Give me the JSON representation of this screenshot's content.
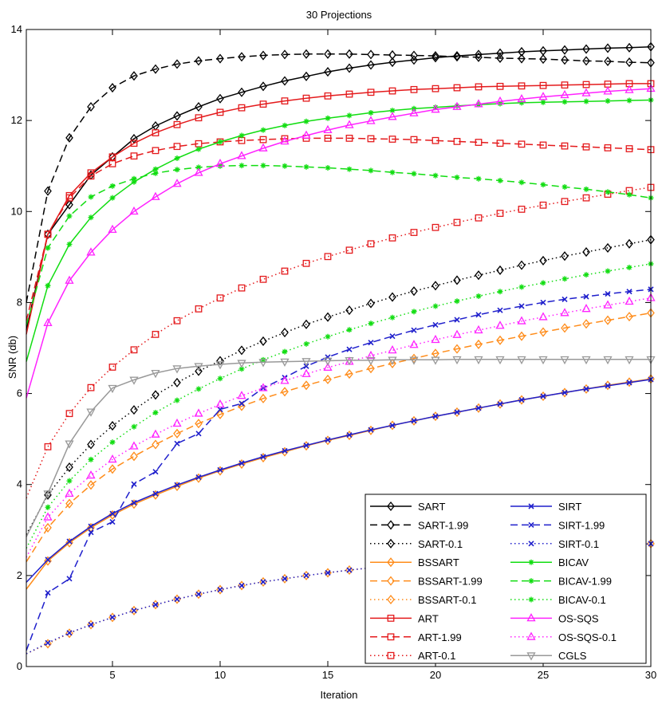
{
  "chart_data": {
    "type": "line",
    "title": "30 Projections",
    "xlabel": "Iteration",
    "ylabel": "SNR (db)",
    "xlim": [
      1,
      30
    ],
    "ylim": [
      0,
      14
    ],
    "xticks": [
      5,
      10,
      15,
      20,
      25,
      30
    ],
    "yticks": [
      0,
      2,
      4,
      6,
      8,
      10,
      12,
      14
    ],
    "x": [
      1,
      2,
      3,
      4,
      5,
      6,
      7,
      8,
      9,
      10,
      11,
      12,
      13,
      14,
      15,
      16,
      17,
      18,
      19,
      20,
      21,
      22,
      23,
      24,
      25,
      26,
      27,
      28,
      29,
      30
    ],
    "legend_position": "bottom-right",
    "series": [
      {
        "name": "SART",
        "color": "#000000",
        "dash": "solid",
        "marker": "diamond",
        "values": [
          7.4,
          9.5,
          10.15,
          10.8,
          11.2,
          11.6,
          11.88,
          12.1,
          12.3,
          12.48,
          12.62,
          12.75,
          12.87,
          12.97,
          13.07,
          13.15,
          13.22,
          13.28,
          13.33,
          13.38,
          13.42,
          13.45,
          13.48,
          13.51,
          13.53,
          13.55,
          13.57,
          13.59,
          13.6,
          13.62
        ]
      },
      {
        "name": "SART-1.99",
        "color": "#000000",
        "dash": "dashed",
        "marker": "diamond",
        "values": [
          8.0,
          10.45,
          11.62,
          12.3,
          12.72,
          12.98,
          13.13,
          13.24,
          13.31,
          13.36,
          13.4,
          13.43,
          13.45,
          13.46,
          13.46,
          13.46,
          13.45,
          13.44,
          13.43,
          13.42,
          13.4,
          13.39,
          13.37,
          13.36,
          13.35,
          13.33,
          13.31,
          13.3,
          13.28,
          13.27
        ]
      },
      {
        "name": "SART-0.1",
        "color": "#000000",
        "dash": "dotted",
        "marker": "diamond",
        "values": [
          2.9,
          3.77,
          4.38,
          4.88,
          5.29,
          5.64,
          5.97,
          6.24,
          6.49,
          6.72,
          6.95,
          7.15,
          7.34,
          7.52,
          7.68,
          7.83,
          7.98,
          8.12,
          8.25,
          8.37,
          8.49,
          8.6,
          8.71,
          8.82,
          8.92,
          9.02,
          9.11,
          9.2,
          9.29,
          9.38
        ]
      },
      {
        "name": "BSSART",
        "color": "#ff8c1a",
        "dash": "solid",
        "marker": "diamond",
        "values": [
          1.7,
          2.32,
          2.72,
          3.05,
          3.33,
          3.57,
          3.77,
          3.96,
          4.14,
          4.3,
          4.45,
          4.59,
          4.72,
          4.85,
          4.97,
          5.08,
          5.19,
          5.3,
          5.4,
          5.5,
          5.59,
          5.68,
          5.77,
          5.86,
          5.94,
          6.02,
          6.1,
          6.18,
          6.25,
          6.32
        ]
      },
      {
        "name": "BSSART-1.99",
        "color": "#ff8c1a",
        "dash": "dashed",
        "marker": "diamond",
        "values": [
          2.3,
          3.05,
          3.58,
          3.99,
          4.34,
          4.62,
          4.88,
          5.12,
          5.34,
          5.54,
          5.72,
          5.89,
          6.04,
          6.18,
          6.31,
          6.43,
          6.55,
          6.66,
          6.77,
          6.88,
          6.98,
          7.08,
          7.17,
          7.26,
          7.35,
          7.44,
          7.53,
          7.61,
          7.69,
          7.77
        ]
      },
      {
        "name": "BSSART-0.1",
        "color": "#ff8c1a",
        "dash": "dotted",
        "marker": "diamond",
        "values": [
          0.28,
          0.5,
          0.73,
          0.92,
          1.08,
          1.23,
          1.36,
          1.48,
          1.59,
          1.69,
          1.78,
          1.86,
          1.93,
          2.0,
          2.06,
          2.12,
          2.17,
          2.22,
          2.27,
          2.32,
          2.36,
          2.4,
          2.44,
          2.48,
          2.52,
          2.56,
          2.6,
          2.63,
          2.66,
          2.7
        ]
      },
      {
        "name": "ART",
        "color": "#e41a1c",
        "dash": "solid",
        "marker": "square",
        "values": [
          7.3,
          9.5,
          10.35,
          10.85,
          11.2,
          11.5,
          11.73,
          11.91,
          12.06,
          12.18,
          12.28,
          12.36,
          12.43,
          12.49,
          12.54,
          12.58,
          12.62,
          12.65,
          12.68,
          12.7,
          12.72,
          12.74,
          12.75,
          12.76,
          12.77,
          12.78,
          12.79,
          12.8,
          12.81,
          12.81
        ]
      },
      {
        "name": "ART-1.99",
        "color": "#e41a1c",
        "dash": "dashed",
        "marker": "square",
        "values": [
          7.6,
          9.5,
          10.3,
          10.78,
          11.05,
          11.22,
          11.34,
          11.43,
          11.49,
          11.53,
          11.56,
          11.58,
          11.6,
          11.61,
          11.61,
          11.61,
          11.6,
          11.59,
          11.58,
          11.56,
          11.54,
          11.52,
          11.5,
          11.48,
          11.46,
          11.44,
          11.42,
          11.4,
          11.38,
          11.36
        ]
      },
      {
        "name": "ART-0.1",
        "color": "#e41a1c",
        "dash": "dotted",
        "marker": "square",
        "values": [
          3.7,
          4.83,
          5.56,
          6.13,
          6.58,
          6.96,
          7.3,
          7.6,
          7.86,
          8.1,
          8.32,
          8.51,
          8.69,
          8.86,
          9.01,
          9.15,
          9.29,
          9.42,
          9.54,
          9.65,
          9.76,
          9.86,
          9.96,
          10.05,
          10.14,
          10.22,
          10.3,
          10.38,
          10.46,
          10.53
        ]
      },
      {
        "name": "SIRT",
        "color": "#1f1fcc",
        "dash": "solid",
        "marker": "x",
        "values": [
          1.85,
          2.35,
          2.75,
          3.08,
          3.36,
          3.6,
          3.8,
          3.99,
          4.16,
          4.32,
          4.47,
          4.61,
          4.74,
          4.86,
          4.98,
          5.09,
          5.2,
          5.3,
          5.4,
          5.5,
          5.59,
          5.68,
          5.77,
          5.86,
          5.94,
          6.02,
          6.1,
          6.17,
          6.24,
          6.31
        ]
      },
      {
        "name": "SIRT-1.99",
        "color": "#1f1fcc",
        "dash": "dashed",
        "marker": "x",
        "values": [
          0.35,
          1.62,
          1.93,
          2.95,
          3.18,
          4.01,
          4.28,
          4.9,
          5.12,
          5.65,
          5.78,
          6.12,
          6.35,
          6.6,
          6.8,
          6.97,
          7.12,
          7.26,
          7.39,
          7.51,
          7.62,
          7.73,
          7.83,
          7.92,
          8.0,
          8.07,
          8.13,
          8.19,
          8.24,
          8.29
        ]
      },
      {
        "name": "SIRT-0.1",
        "color": "#1f1fcc",
        "dash": "dotted",
        "marker": "x",
        "values": [
          0.28,
          0.52,
          0.74,
          0.92,
          1.08,
          1.23,
          1.36,
          1.48,
          1.59,
          1.69,
          1.78,
          1.86,
          1.93,
          2.0,
          2.06,
          2.12,
          2.17,
          2.22,
          2.27,
          2.32,
          2.36,
          2.4,
          2.44,
          2.48,
          2.52,
          2.56,
          2.6,
          2.63,
          2.66,
          2.7
        ]
      },
      {
        "name": "BICAV",
        "color": "#11dd11",
        "dash": "solid",
        "marker": "asterisk",
        "values": [
          6.7,
          8.37,
          9.28,
          9.87,
          10.3,
          10.65,
          10.93,
          11.17,
          11.37,
          11.53,
          11.67,
          11.79,
          11.89,
          11.98,
          12.05,
          12.11,
          12.17,
          12.22,
          12.26,
          12.29,
          12.32,
          12.35,
          12.37,
          12.39,
          12.4,
          12.41,
          12.42,
          12.43,
          12.44,
          12.45
        ]
      },
      {
        "name": "BICAV-1.99",
        "color": "#11dd11",
        "dash": "dashed",
        "marker": "asterisk",
        "values": [
          7.5,
          9.2,
          9.9,
          10.32,
          10.56,
          10.72,
          10.84,
          10.92,
          10.97,
          11.0,
          11.01,
          11.01,
          11.0,
          10.98,
          10.96,
          10.93,
          10.9,
          10.86,
          10.83,
          10.79,
          10.75,
          10.72,
          10.68,
          10.64,
          10.59,
          10.54,
          10.49,
          10.43,
          10.37,
          10.3
        ]
      },
      {
        "name": "BICAV-0.1",
        "color": "#11dd11",
        "dash": "dotted",
        "marker": "asterisk",
        "values": [
          2.6,
          3.5,
          4.08,
          4.55,
          4.93,
          5.27,
          5.58,
          5.85,
          6.1,
          6.33,
          6.54,
          6.74,
          6.92,
          7.09,
          7.25,
          7.4,
          7.54,
          7.67,
          7.8,
          7.92,
          8.03,
          8.14,
          8.24,
          8.34,
          8.43,
          8.52,
          8.61,
          8.69,
          8.77,
          8.85
        ]
      },
      {
        "name": "OS-SQS",
        "color": "#ff22ff",
        "dash": "solid",
        "marker": "triangle-up",
        "values": [
          5.9,
          7.55,
          8.48,
          9.1,
          9.6,
          10.0,
          10.32,
          10.61,
          10.85,
          11.05,
          11.22,
          11.39,
          11.54,
          11.67,
          11.79,
          11.9,
          11.99,
          12.08,
          12.16,
          12.24,
          12.3,
          12.36,
          12.42,
          12.47,
          12.52,
          12.56,
          12.6,
          12.64,
          12.67,
          12.7
        ]
      },
      {
        "name": "OS-SQS-0.1",
        "color": "#ff22ff",
        "dash": "dotted",
        "marker": "triangle-up",
        "values": [
          2.4,
          3.28,
          3.8,
          4.2,
          4.55,
          4.84,
          5.1,
          5.34,
          5.56,
          5.76,
          5.95,
          6.12,
          6.28,
          6.43,
          6.57,
          6.7,
          6.83,
          6.95,
          7.07,
          7.18,
          7.29,
          7.39,
          7.49,
          7.59,
          7.68,
          7.77,
          7.86,
          7.94,
          8.02,
          8.1
        ]
      },
      {
        "name": "CGLS",
        "color": "#999999",
        "dash": "solid",
        "marker": "triangle-down",
        "values": [
          2.85,
          3.8,
          4.9,
          5.6,
          6.12,
          6.3,
          6.45,
          6.55,
          6.6,
          6.64,
          6.67,
          6.69,
          6.7,
          6.71,
          6.72,
          6.73,
          6.73,
          6.74,
          6.74,
          6.74,
          6.75,
          6.75,
          6.75,
          6.75,
          6.75,
          6.75,
          6.75,
          6.75,
          6.75,
          6.75
        ]
      }
    ]
  }
}
